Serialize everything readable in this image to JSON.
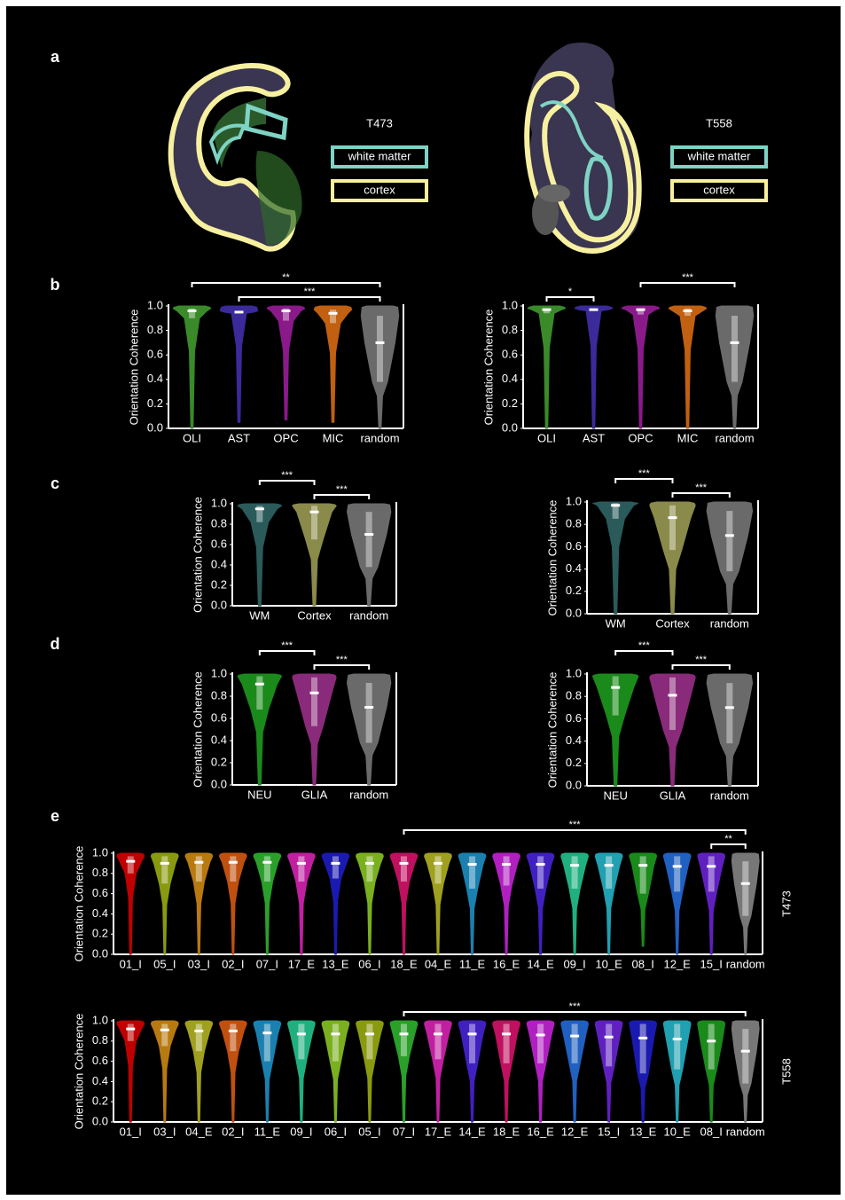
{
  "panel_labels": [
    "a",
    "b",
    "c",
    "d",
    "e"
  ],
  "panel_a": {
    "legend_colors": [
      "#7fd3c4",
      "#f7f0a0"
    ],
    "samples": [
      {
        "name": "T473",
        "legend": [
          "white matter",
          "cortex"
        ]
      },
      {
        "name": "T558",
        "legend": [
          "white matter",
          "cortex"
        ]
      }
    ]
  },
  "chart_data": [
    {
      "type": "violin",
      "ylabel": "Orientation Coherence",
      "categories": [
        "OLI",
        "AST",
        "OPC",
        "MIC",
        "random"
      ],
      "colors": [
        "#3a8a2a",
        "#3a2a9a",
        "#8a1a8a",
        "#c06010",
        "#6a6a6a"
      ],
      "values": [
        0.96,
        0.95,
        0.96,
        0.94,
        0.7
      ],
      "q1": [
        0.9,
        0.94,
        0.88,
        0.86,
        0.38
      ],
      "q3": [
        0.98,
        0.96,
        0.98,
        0.97,
        0.92
      ],
      "min": [
        0,
        0.05,
        0.07,
        0.05,
        0
      ],
      "ylim": [
        0,
        1
      ],
      "yticks": [
        {
          "value": 0,
          "label": "0.0"
        },
        0.2,
        0.4,
        0.6,
        0.8,
        {
          "value": 1,
          "label": "1.0"
        }
      ],
      "annotations": [
        {
          "text": "***",
          "pair": [
            "AST",
            "random"
          ]
        },
        {
          "text": "**",
          "pair": [
            "OLI",
            "random"
          ]
        }
      ]
    },
    {
      "type": "violin",
      "ylabel": "Orientation Coherence",
      "categories": [
        "OLI",
        "AST",
        "OPC",
        "MIC",
        "random"
      ],
      "colors": [
        "#3a8a2a",
        "#3a2a9a",
        "#8a1a8a",
        "#c06010",
        "#6a6a6a"
      ],
      "values": [
        0.97,
        0.97,
        0.97,
        0.96,
        0.7
      ],
      "q1": [
        0.94,
        0.96,
        0.93,
        0.92,
        0.38
      ],
      "q3": [
        0.98,
        0.98,
        0.98,
        0.98,
        0.92
      ],
      "min": [
        0,
        0,
        0,
        0,
        0
      ],
      "ylim": [
        0,
        1
      ],
      "yticks": [
        {
          "value": 0,
          "label": "0.0"
        },
        0.2,
        0.4,
        0.6,
        0.8,
        {
          "value": 1,
          "label": "1.0"
        }
      ],
      "annotations": [
        {
          "text": "*",
          "pair": [
            "OLI",
            "AST"
          ]
        },
        {
          "text": "***",
          "pair": [
            "OPC",
            "random"
          ]
        }
      ]
    },
    {
      "type": "violin",
      "ylabel": "Orientation Coherence",
      "categories": [
        "WM",
        "Cortex",
        "random"
      ],
      "colors": [
        "#2a5a5a",
        "#8a8a4a",
        "#6a6a6a"
      ],
      "values": [
        0.95,
        0.92,
        0.7
      ],
      "q1": [
        0.82,
        0.65,
        0.38
      ],
      "q3": [
        0.98,
        0.98,
        0.92
      ],
      "min": [
        0,
        0,
        0
      ],
      "ylim": [
        0,
        1
      ],
      "yticks": [
        {
          "value": 0,
          "label": "0.0"
        },
        0.2,
        0.4,
        0.6,
        0.8,
        {
          "value": 1,
          "label": "1.0"
        }
      ],
      "annotations": [
        {
          "text": "***",
          "pair": [
            "Cortex",
            "random"
          ]
        },
        {
          "text": "***",
          "pair": [
            "WM",
            "Cortex"
          ]
        }
      ]
    },
    {
      "type": "violin",
      "ylabel": "Orientation Coherence",
      "categories": [
        "WM",
        "Cortex",
        "random"
      ],
      "colors": [
        "#2a5a5a",
        "#8a8a4a",
        "#6a6a6a"
      ],
      "values": [
        0.97,
        0.86,
        0.7
      ],
      "q1": [
        0.85,
        0.57,
        0.38
      ],
      "q3": [
        0.99,
        0.97,
        0.92
      ],
      "min": [
        0,
        0,
        0
      ],
      "ylim": [
        0,
        1
      ],
      "yticks": [
        {
          "value": 0,
          "label": "0.0"
        },
        0.2,
        0.4,
        0.6,
        0.8,
        {
          "value": 1,
          "label": "1.0"
        }
      ],
      "annotations": [
        {
          "text": "***",
          "pair": [
            "Cortex",
            "random"
          ]
        },
        {
          "text": "***",
          "pair": [
            "WM",
            "Cortex"
          ]
        }
      ]
    },
    {
      "type": "violin",
      "ylabel": "Orientation Coherence",
      "categories": [
        "NEU",
        "GLIA",
        "random"
      ],
      "colors": [
        "#1a8a1a",
        "#8a2a7a",
        "#6a6a6a"
      ],
      "values": [
        0.91,
        0.83,
        0.7
      ],
      "q1": [
        0.68,
        0.53,
        0.38
      ],
      "q3": [
        0.98,
        0.97,
        0.92
      ],
      "min": [
        0,
        0,
        0
      ],
      "ylim": [
        0,
        1
      ],
      "yticks": [
        {
          "value": 0,
          "label": "0.0"
        },
        0.2,
        0.4,
        0.6,
        0.8,
        {
          "value": 1,
          "label": "1.0"
        }
      ],
      "annotations": [
        {
          "text": "***",
          "pair": [
            "GLIA",
            "random"
          ]
        },
        {
          "text": "***",
          "pair": [
            "NEU",
            "GLIA"
          ]
        }
      ]
    },
    {
      "type": "violin",
      "ylabel": "Orientation Coherence",
      "categories": [
        "NEU",
        "GLIA",
        "random"
      ],
      "colors": [
        "#1a8a1a",
        "#8a2a7a",
        "#6a6a6a"
      ],
      "values": [
        0.88,
        0.81,
        0.7
      ],
      "q1": [
        0.63,
        0.5,
        0.38
      ],
      "q3": [
        0.98,
        0.97,
        0.92
      ],
      "min": [
        0,
        0,
        0
      ],
      "ylim": [
        0,
        1
      ],
      "yticks": [
        {
          "value": 0,
          "label": "0.0"
        },
        0.2,
        0.4,
        0.6,
        0.8,
        {
          "value": 1,
          "label": "1.0"
        }
      ],
      "annotations": [
        {
          "text": "***",
          "pair": [
            "GLIA",
            "random"
          ]
        },
        {
          "text": "***",
          "pair": [
            "NEU",
            "GLIA"
          ]
        }
      ]
    },
    {
      "type": "violin",
      "ylabel": "Orientation Coherence",
      "side_label": "T473",
      "categories": [
        "01_I",
        "05_I",
        "03_I",
        "02_I",
        "07_I",
        "17_E",
        "13_E",
        "06_I",
        "18_E",
        "04_E",
        "11_E",
        "16_E",
        "14_E",
        "09_I",
        "10_E",
        "08_I",
        "12_E",
        "15_I",
        "random"
      ],
      "colors": [
        "#c00000",
        "#8a9a10",
        "#b87a10",
        "#c05010",
        "#2aa02a",
        "#c020a0",
        "#1a1ab0",
        "#7ab020",
        "#c01060",
        "#a0a020",
        "#1a80b0",
        "#b020c0",
        "#4020c0",
        "#20b080",
        "#20a0b0",
        "#1a8a1a",
        "#2060c0",
        "#6020c0",
        "#777777"
      ],
      "values": [
        0.92,
        0.9,
        0.91,
        0.91,
        0.91,
        0.9,
        0.9,
        0.9,
        0.9,
        0.9,
        0.89,
        0.89,
        0.89,
        0.88,
        0.88,
        0.88,
        0.87,
        0.87,
        0.7
      ],
      "q1": [
        0.8,
        0.7,
        0.72,
        0.72,
        0.72,
        0.72,
        0.75,
        0.72,
        0.72,
        0.7,
        0.65,
        0.68,
        0.65,
        0.65,
        0.65,
        0.6,
        0.62,
        0.62,
        0.38
      ],
      "q3": [
        0.97,
        0.97,
        0.97,
        0.97,
        0.97,
        0.97,
        0.97,
        0.97,
        0.97,
        0.97,
        0.97,
        0.97,
        0.97,
        0.97,
        0.97,
        0.97,
        0.97,
        0.97,
        0.92
      ],
      "min": [
        0,
        0,
        0,
        0,
        0,
        0,
        0,
        0,
        0,
        0,
        0,
        0,
        0,
        0,
        0,
        0.08,
        0,
        0,
        0
      ],
      "ylim": [
        0,
        1
      ],
      "yticks": [
        {
          "value": 0,
          "label": "0.0"
        },
        0.2,
        0.4,
        0.6,
        0.8,
        {
          "value": 1,
          "label": "1.0"
        }
      ],
      "annotations": [
        {
          "text": "**",
          "pair": [
            "15_I",
            "random"
          ]
        },
        {
          "text": "***",
          "pair": [
            "18_E",
            "random"
          ]
        }
      ]
    },
    {
      "type": "violin",
      "ylabel": "Orientation Coherence",
      "side_label": "T558",
      "categories": [
        "01_I",
        "03_I",
        "04_E",
        "02_I",
        "11_E",
        "09_I",
        "06_I",
        "05_I",
        "07_I",
        "17_E",
        "14_E",
        "18_E",
        "16_E",
        "12_E",
        "15_I",
        "13_E",
        "10_E",
        "08_I",
        "random"
      ],
      "colors": [
        "#c00000",
        "#b87a10",
        "#a0a020",
        "#c05010",
        "#1a80b0",
        "#20b080",
        "#7ab020",
        "#8a9a10",
        "#2aa02a",
        "#c020a0",
        "#4020c0",
        "#c01060",
        "#b020c0",
        "#2060c0",
        "#6020c0",
        "#1a1ab0",
        "#20a0b0",
        "#1a8a1a",
        "#777777"
      ],
      "values": [
        0.92,
        0.91,
        0.9,
        0.9,
        0.88,
        0.87,
        0.87,
        0.87,
        0.87,
        0.87,
        0.87,
        0.87,
        0.86,
        0.85,
        0.84,
        0.83,
        0.82,
        0.8,
        0.7
      ],
      "q1": [
        0.8,
        0.75,
        0.7,
        0.7,
        0.6,
        0.62,
        0.6,
        0.62,
        0.65,
        0.62,
        0.58,
        0.58,
        0.58,
        0.58,
        0.55,
        0.48,
        0.52,
        0.52,
        0.38
      ],
      "q3": [
        0.97,
        0.97,
        0.97,
        0.97,
        0.97,
        0.97,
        0.97,
        0.97,
        0.97,
        0.97,
        0.97,
        0.97,
        0.97,
        0.97,
        0.97,
        0.97,
        0.97,
        0.97,
        0.92
      ],
      "min": [
        0,
        0,
        0,
        0,
        0,
        0,
        0,
        0,
        0,
        0,
        0,
        0,
        0,
        0,
        0,
        0,
        0,
        0,
        0
      ],
      "ylim": [
        0,
        1
      ],
      "yticks": [
        {
          "value": 0,
          "label": "0.0"
        },
        0.2,
        0.4,
        0.6,
        0.8,
        {
          "value": 1,
          "label": "1.0"
        }
      ],
      "annotations": [
        {
          "text": "***",
          "pair": [
            "07_I",
            "random"
          ]
        }
      ]
    }
  ]
}
